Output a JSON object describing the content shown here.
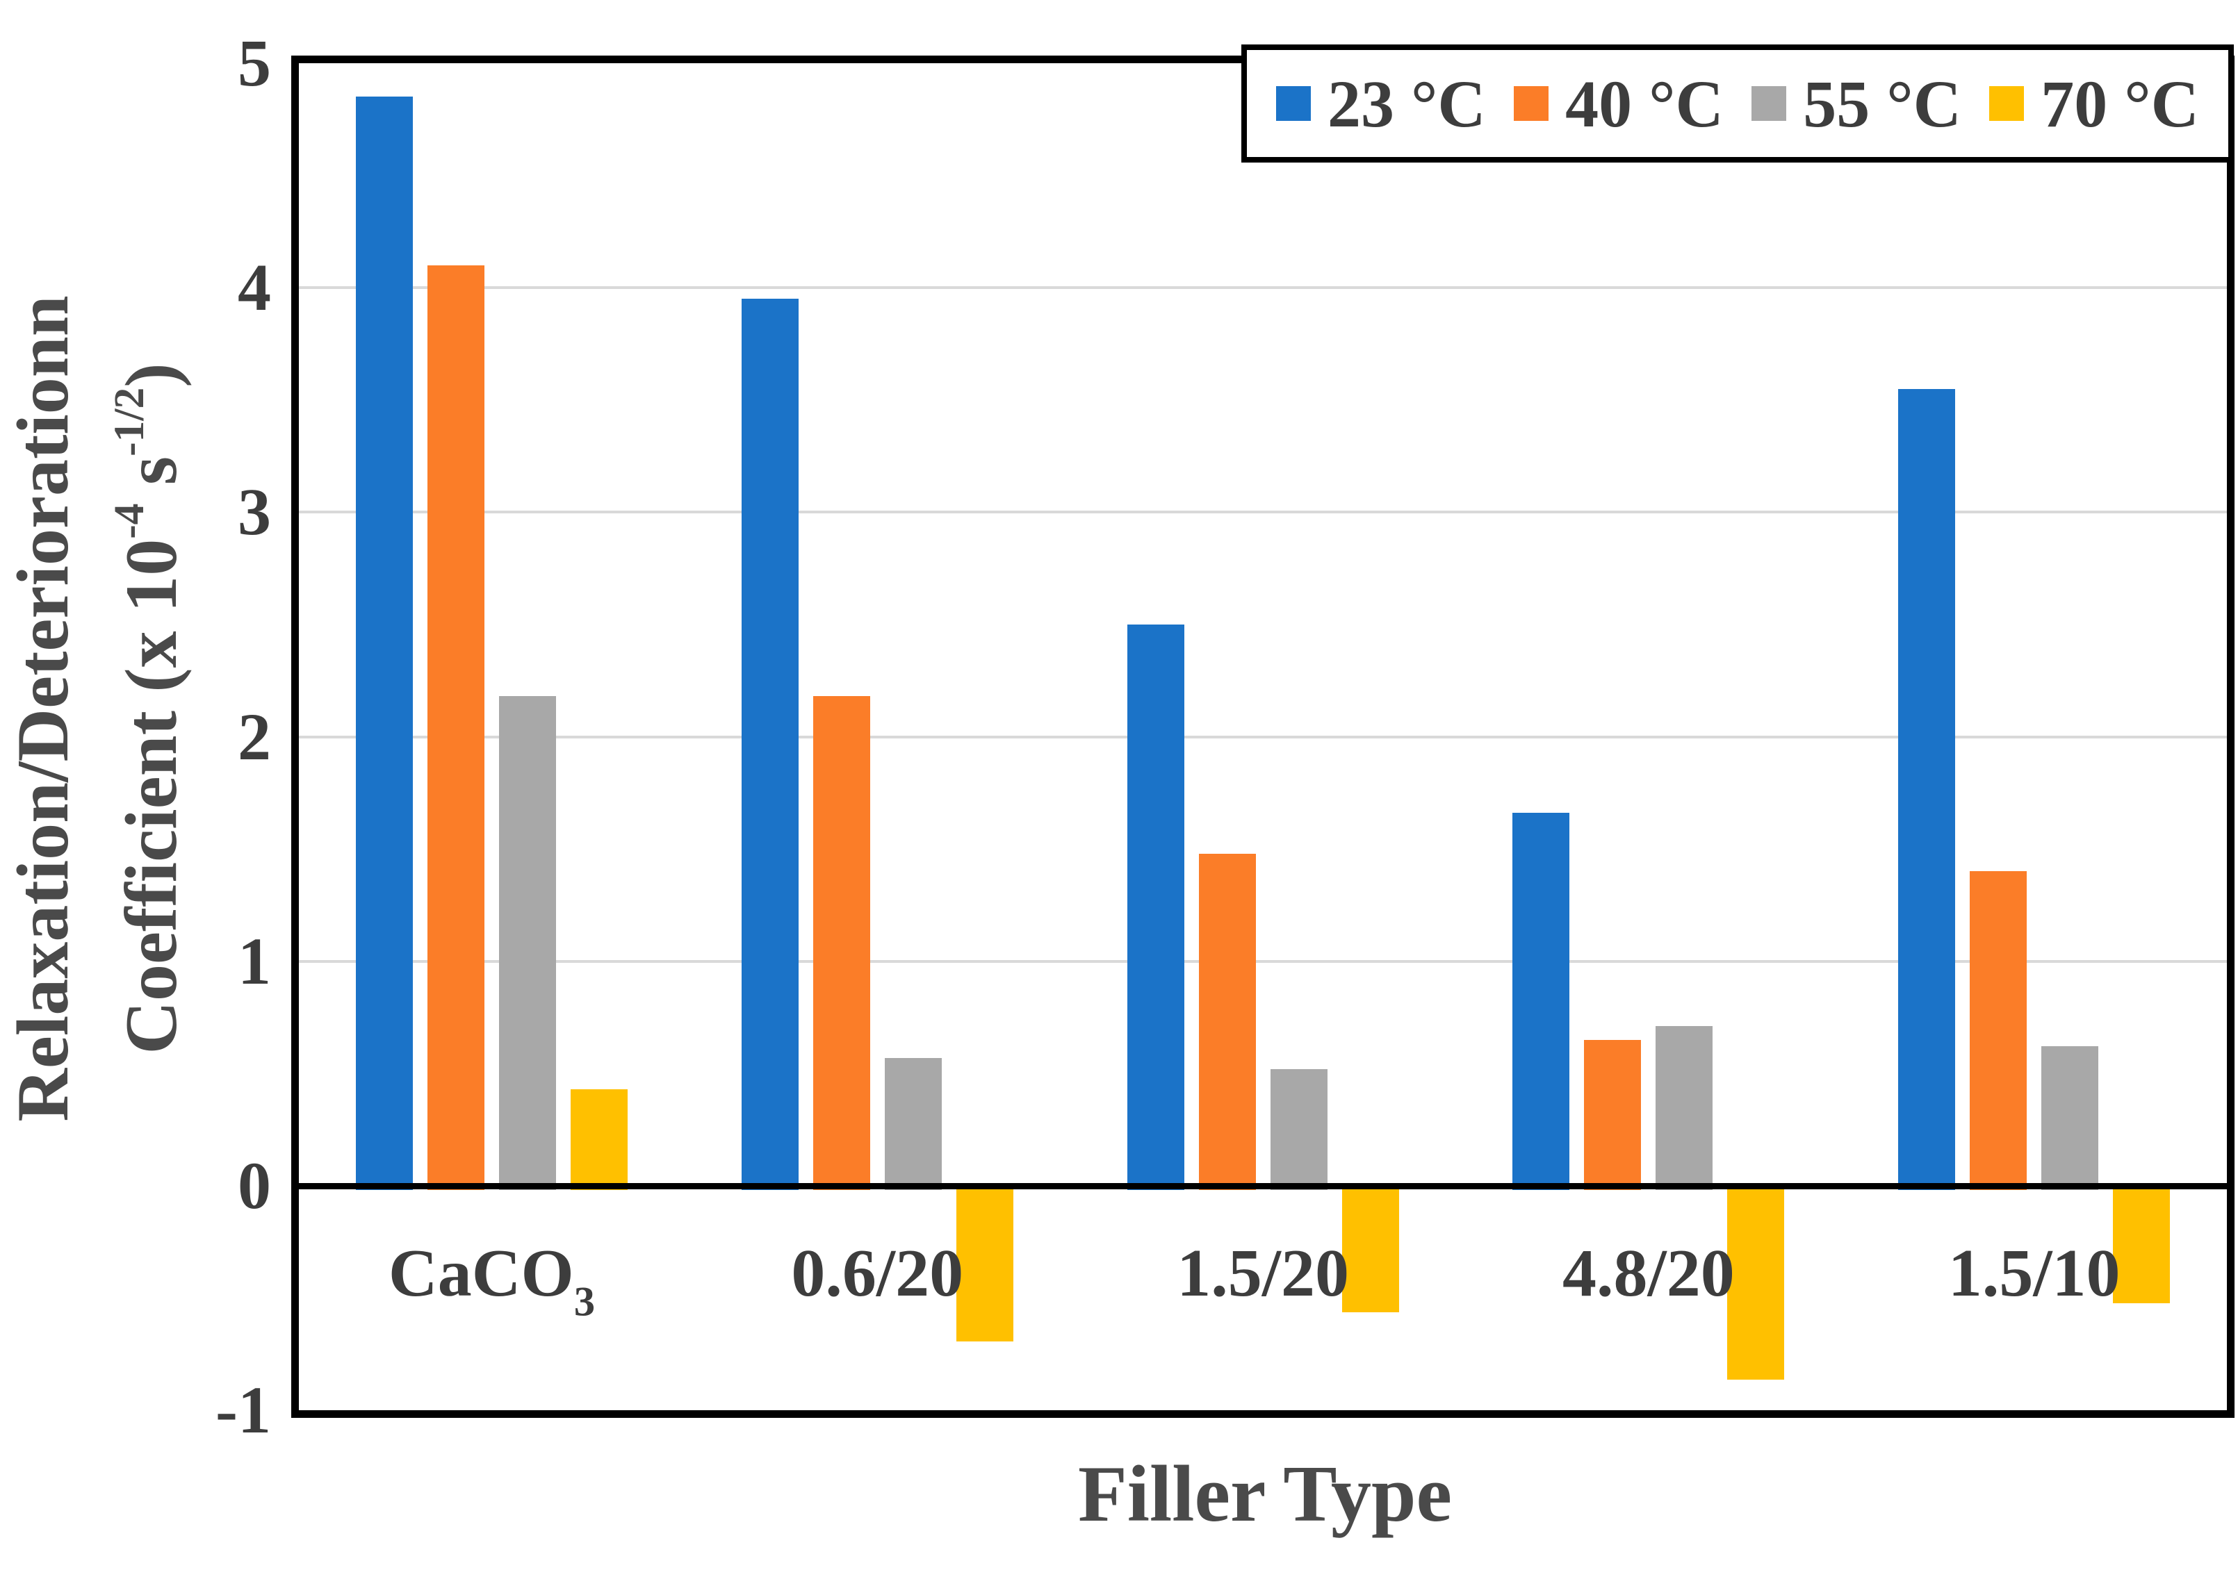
{
  "chart_data": {
    "type": "bar",
    "title": "",
    "xlabel": "Filler Type",
    "ylabel_line1": "Relaxation/Deteriorationn",
    "ylabel_line2_parts": {
      "pre": "Coefficient (x 10",
      "sup1": "-4",
      "mid": " s",
      "sup2": "-1/2",
      "post": ")"
    },
    "categories": [
      {
        "label": "CaCO",
        "sub": "3"
      },
      {
        "label": "0.6/20",
        "sub": ""
      },
      {
        "label": "1.5/20",
        "sub": ""
      },
      {
        "label": "4.8/20",
        "sub": ""
      },
      {
        "label": "1.5/10",
        "sub": ""
      }
    ],
    "series": [
      {
        "name": "23 °C",
        "color": "#1b73c8",
        "values": [
          4.85,
          3.95,
          2.5,
          1.66,
          3.55
        ]
      },
      {
        "name": "40 °C",
        "color": "#fb7d28",
        "values": [
          4.1,
          2.18,
          1.48,
          0.65,
          1.4
        ]
      },
      {
        "name": "55 °C",
        "color": "#a8a8a8",
        "values": [
          2.18,
          0.57,
          0.52,
          0.71,
          0.62
        ]
      },
      {
        "name": "70 °C",
        "color": "#ffc000",
        "values": [
          0.43,
          -0.68,
          -0.55,
          -0.85,
          -0.51
        ]
      }
    ],
    "ylim": [
      -1,
      5
    ],
    "yticks": [
      "5",
      "4",
      "3",
      "2",
      "1",
      "0",
      "-1"
    ],
    "ytick_values": [
      5,
      4,
      3,
      2,
      1,
      0,
      -1
    ],
    "gridline_values": [
      4,
      3,
      2,
      1
    ],
    "grid": "horizontal",
    "legend_position": "top-right"
  },
  "style": {
    "frame_color": "#000000",
    "grid_color": "#d9d9d9",
    "text_color": "#3d3d3d",
    "background": "#ffffff"
  }
}
